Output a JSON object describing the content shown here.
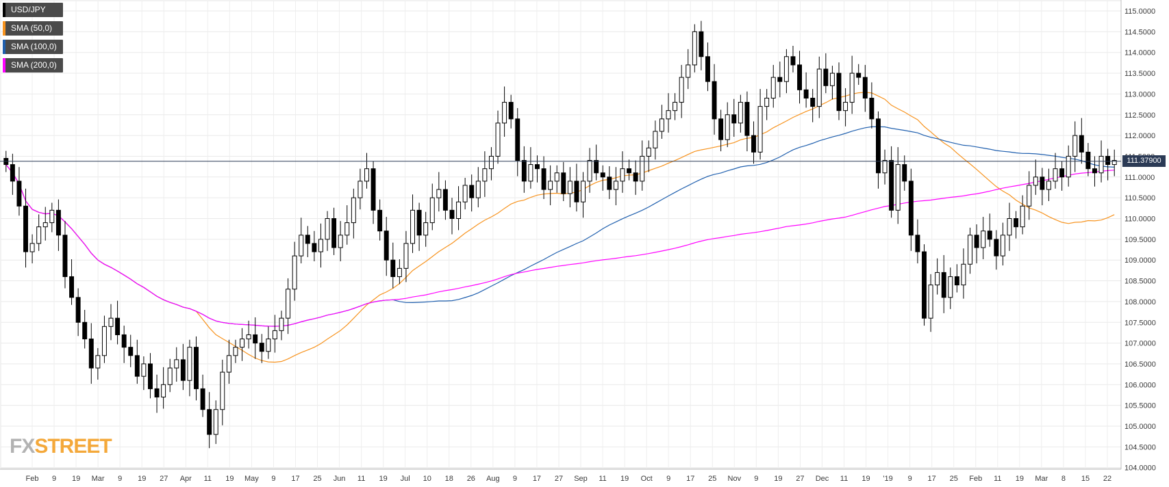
{
  "legend": [
    {
      "label": "USD/JPY",
      "color": "#000000"
    },
    {
      "label": "SMA (50,0)",
      "color": "#f7931e"
    },
    {
      "label": "SMA (100,0)",
      "color": "#1f5fae"
    },
    {
      "label": "SMA (200,0)",
      "color": "#ff00ff"
    }
  ],
  "price_tag": "111.37900",
  "logo": {
    "part1": "FX",
    "part2": "STREET"
  },
  "chart_data": {
    "type": "candlestick",
    "symbol": "USD/JPY",
    "ylim": [
      104.0,
      115.0
    ],
    "y_ticks": [
      "104.0000",
      "104.5000",
      "105.0000",
      "105.5000",
      "106.0000",
      "106.5000",
      "107.0000",
      "107.5000",
      "108.0000",
      "108.5000",
      "109.0000",
      "109.5000",
      "110.0000",
      "110.5000",
      "111.0000",
      "111.5000",
      "112.0000",
      "112.5000",
      "113.0000",
      "113.5000",
      "114.0000",
      "114.5000",
      "115.0000"
    ],
    "x_ticks": [
      "Feb",
      "9",
      "19",
      "Mar",
      "9",
      "19",
      "27",
      "Apr",
      "11",
      "19",
      "May",
      "9",
      "17",
      "25",
      "Jun",
      "11",
      "19",
      "Jul",
      "10",
      "18",
      "26",
      "Aug",
      "9",
      "17",
      "27",
      "Sep",
      "11",
      "19",
      "Oct",
      "9",
      "17",
      "25",
      "Nov",
      "9",
      "19",
      "27",
      "Dec",
      "11",
      "19",
      "'19",
      "9",
      "17",
      "25",
      "Feb",
      "11",
      "19",
      "Mar",
      "8",
      "15",
      "22"
    ],
    "current_price": 111.379,
    "close_series": [
      111.3,
      110.9,
      110.3,
      109.2,
      109.4,
      109.8,
      109.9,
      110.2,
      109.6,
      108.6,
      108.1,
      107.5,
      107.1,
      106.4,
      106.7,
      107.4,
      107.6,
      107.2,
      106.9,
      106.7,
      106.2,
      106.5,
      105.9,
      105.7,
      106.0,
      106.4,
      106.6,
      106.1,
      106.9,
      105.9,
      105.4,
      104.8,
      105.4,
      106.3,
      106.7,
      106.9,
      107.1,
      107.2,
      107.0,
      106.8,
      107.1,
      107.3,
      107.6,
      108.3,
      109.1,
      109.6,
      109.4,
      109.2,
      109.5,
      110.0,
      109.3,
      109.6,
      109.9,
      110.5,
      110.9,
      111.2,
      110.2,
      109.7,
      109.0,
      108.6,
      108.8,
      109.4,
      110.2,
      109.6,
      109.9,
      110.5,
      110.7,
      110.2,
      110.0,
      110.4,
      110.8,
      110.5,
      110.9,
      111.2,
      111.5,
      112.3,
      112.8,
      112.4,
      111.4,
      110.9,
      111.3,
      111.2,
      110.7,
      110.9,
      111.1,
      110.6,
      110.9,
      110.4,
      110.9,
      111.4,
      111.1,
      111.0,
      110.7,
      110.9,
      111.2,
      111.1,
      110.9,
      111.5,
      111.7,
      112.1,
      112.4,
      112.6,
      112.8,
      113.4,
      113.7,
      114.5,
      113.9,
      113.3,
      112.4,
      111.9,
      112.5,
      112.3,
      112.8,
      112.0,
      111.6,
      112.7,
      112.9,
      113.4,
      113.3,
      113.9,
      113.7,
      113.1,
      112.9,
      112.7,
      113.6,
      113.2,
      113.5,
      112.6,
      112.8,
      113.5,
      113.4,
      112.9,
      112.4,
      111.1,
      111.4,
      110.2,
      111.3,
      110.9,
      109.6,
      109.2,
      107.6,
      108.4,
      108.7,
      108.1,
      108.6,
      108.4,
      108.9,
      109.6,
      109.3,
      109.7,
      109.5,
      109.1,
      109.6,
      110.0,
      109.8,
      110.3,
      110.8,
      111.0,
      110.7,
      110.9,
      111.2,
      111.0,
      111.5,
      112.0,
      111.6,
      111.2,
      111.1,
      111.5,
      111.3,
      111.4
    ]
  }
}
